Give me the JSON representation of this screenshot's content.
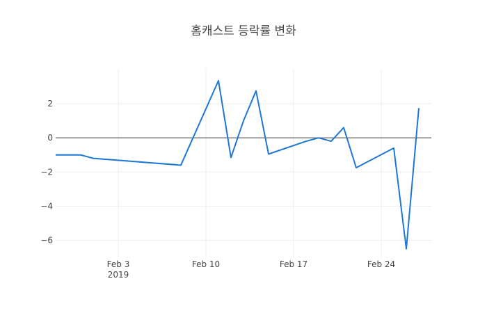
{
  "chart_data": {
    "type": "line",
    "title": "홈캐스트 등락률 변화",
    "xlabel": "",
    "ylabel": "",
    "x_range": [
      "2019-01-29",
      "2019-02-28"
    ],
    "ylim": [
      -7.0,
      4.0
    ],
    "x_ticks": [
      {
        "date": "2019-02-03",
        "label": "Feb 3",
        "sublabel": "2019"
      },
      {
        "date": "2019-02-10",
        "label": "Feb 10",
        "sublabel": ""
      },
      {
        "date": "2019-02-17",
        "label": "Feb 17",
        "sublabel": ""
      },
      {
        "date": "2019-02-24",
        "label": "Feb 24",
        "sublabel": ""
      }
    ],
    "y_ticks": [
      {
        "value": 2,
        "label": "2"
      },
      {
        "value": 0,
        "label": "0"
      },
      {
        "value": -2,
        "label": "−2"
      },
      {
        "value": -4,
        "label": "−4"
      },
      {
        "value": -6,
        "label": "−6"
      }
    ],
    "grid": true,
    "zero_line": true,
    "series": [
      {
        "name": "",
        "color": "#1f77d4",
        "x": [
          "2019-01-29",
          "2019-01-30",
          "2019-01-31",
          "2019-02-01",
          "2019-02-08",
          "2019-02-11",
          "2019-02-12",
          "2019-02-13",
          "2019-02-14",
          "2019-02-15",
          "2019-02-18",
          "2019-02-19",
          "2019-02-20",
          "2019-02-21",
          "2019-02-22",
          "2019-02-25",
          "2019-02-26",
          "2019-02-27"
        ],
        "values": [
          -1.0,
          -1.0,
          -1.0,
          -1.2,
          -1.6,
          3.35,
          -1.15,
          1.0,
          2.75,
          -0.95,
          -0.2,
          0.0,
          -0.2,
          0.6,
          -1.75,
          -0.6,
          -6.5,
          1.75
        ]
      }
    ]
  }
}
